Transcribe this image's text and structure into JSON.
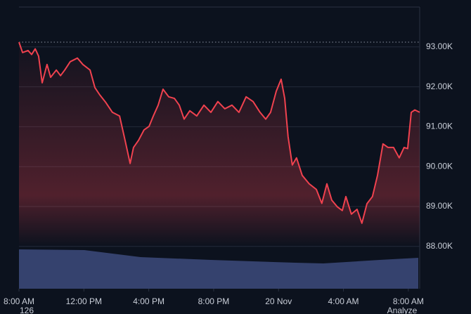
{
  "chart_data": {
    "type": "line",
    "x": [
      0,
      0.22,
      0.56,
      0.78,
      1.0,
      1.21,
      1.43,
      1.73,
      1.95,
      2.3,
      2.56,
      2.82,
      3.16,
      3.6,
      3.94,
      4.38,
      4.68,
      4.98,
      5.33,
      5.76,
      6.2,
      6.54,
      6.85,
      7.06,
      7.37,
      7.71,
      8.02,
      8.28,
      8.58,
      8.88,
      9.23,
      9.58,
      9.88,
      10.18,
      10.53,
      10.96,
      11.4,
      11.83,
      12.26,
      12.69,
      13.13,
      13.56,
      14.0,
      14.43,
      14.86,
      15.21,
      15.51,
      15.86,
      16.16,
      16.38,
      16.59,
      16.85,
      17.11,
      17.46,
      17.89,
      18.33,
      18.67,
      18.98,
      19.28,
      19.63,
      19.93,
      20.15,
      20.49,
      20.84,
      21.14,
      21.45,
      21.79,
      22.1,
      22.44,
      22.75,
      23.09,
      23.44,
      23.74,
      23.96,
      24.18,
      24.4,
      24.7
    ],
    "series": [
      {
        "color": "#f0424f",
        "values": [
          93120,
          92860,
          92910,
          92810,
          92950,
          92770,
          92100,
          92560,
          92240,
          92420,
          92280,
          92420,
          92630,
          92720,
          92560,
          92420,
          91980,
          91800,
          91620,
          91360,
          91270,
          90660,
          90080,
          90480,
          90660,
          90920,
          91010,
          91270,
          91540,
          91940,
          91750,
          91710,
          91540,
          91190,
          91400,
          91270,
          91540,
          91360,
          91630,
          91450,
          91540,
          91360,
          91750,
          91630,
          91360,
          91190,
          91360,
          91890,
          92190,
          91710,
          90750,
          90040,
          90220,
          89780,
          89570,
          89430,
          89080,
          89570,
          89160,
          88990,
          88900,
          89250,
          88810,
          88930,
          88580,
          89070,
          89250,
          89780,
          90570,
          90480,
          90480,
          90220,
          90480,
          90450,
          91360,
          91420,
          91360
        ]
      }
    ],
    "reference_line": 93120,
    "xlim": [
      0,
      24.7
    ],
    "xticks": [
      {
        "value": 0,
        "label": "8:00 AM"
      },
      {
        "value": 4,
        "label": "12:00 PM"
      },
      {
        "value": 8,
        "label": "4:00 PM"
      },
      {
        "value": 12,
        "label": "8:00 PM"
      },
      {
        "value": 16,
        "label": "20 Nov"
      },
      {
        "value": 20,
        "label": "4:00 AM"
      },
      {
        "value": 24,
        "label": "8:00 AM"
      }
    ],
    "ylim": [
      86940,
      94000
    ],
    "yticks": [
      {
        "value": 88000,
        "label": "88.00K"
      },
      {
        "value": 89000,
        "label": "89.00K"
      },
      {
        "value": 90000,
        "label": "90.00K"
      },
      {
        "value": 91000,
        "label": "91.00K"
      },
      {
        "value": 92000,
        "label": "92.00K"
      },
      {
        "value": 93000,
        "label": "93.00K"
      }
    ],
    "grid": true,
    "footer_left": "126",
    "footer_right": "Analyze"
  }
}
